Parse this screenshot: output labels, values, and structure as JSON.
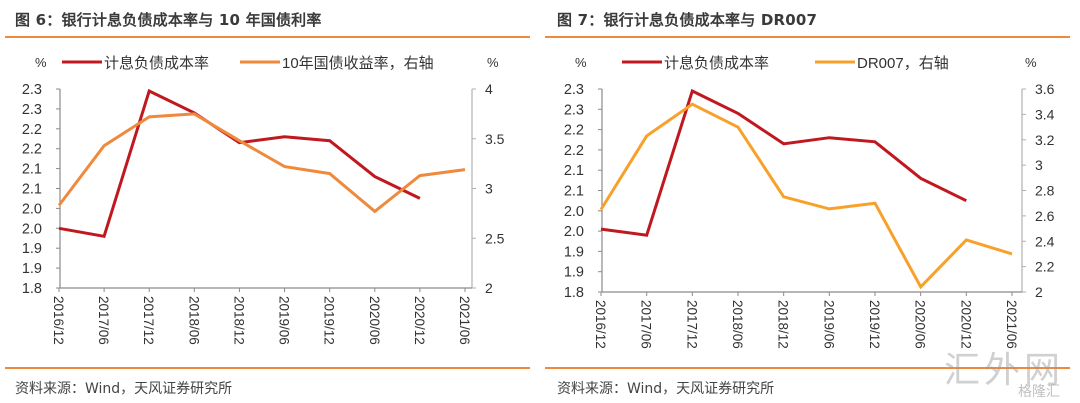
{
  "watermark": {
    "main": "汇外网",
    "sub": "格隆汇"
  },
  "colors": {
    "accent_rule": "#ef8a3d",
    "series_red": "#c0181f",
    "series_orange_1": "#ef8a3d",
    "series_orange_2": "#f7a12a",
    "axis": "#8a8a8a",
    "text": "#333333"
  },
  "chart_data": [
    {
      "type": "line",
      "title": "图 6：银行计息负债成本率与 10 年国债利率",
      "source": "资料来源：Wind，天风证券研究所",
      "left_unit": "%",
      "right_unit": "%",
      "legend_position": "top",
      "x": [
        "2016/12",
        "2017/06",
        "2017/12",
        "2018/06",
        "2018/12",
        "2019/06",
        "2019/12",
        "2020/06",
        "2020/12",
        "2021/06"
      ],
      "ylim_left": [
        1.8,
        2.3
      ],
      "yticks_left": [
        1.8,
        1.85,
        1.9,
        1.95,
        2.0,
        2.05,
        2.1,
        2.15,
        2.2,
        2.25,
        2.3
      ],
      "ytick_labels_left": [
        "1.8",
        "1.9",
        "1.9",
        "2.0",
        "2.0",
        "2.1",
        "2.1",
        "2.2",
        "2.2",
        "2.3",
        "2.3"
      ],
      "ylim_right": [
        2,
        4
      ],
      "yticks_right": [
        2,
        2.5,
        3,
        3.5,
        4
      ],
      "ytick_labels_right": [
        "2",
        "2.5",
        "3",
        "3.5",
        "4"
      ],
      "series": [
        {
          "name": "计息负债成本率",
          "axis": "left",
          "color": "#c0181f",
          "values": [
            1.95,
            1.93,
            2.295,
            2.24,
            2.165,
            2.18,
            2.17,
            2.08,
            2.025,
            null
          ]
        },
        {
          "name": "10年国债收益率，右轴",
          "axis": "right",
          "color": "#ef8a3d",
          "values": [
            2.83,
            3.43,
            3.72,
            3.75,
            3.48,
            3.22,
            3.15,
            2.77,
            3.13,
            3.19
          ]
        }
      ]
    },
    {
      "type": "line",
      "title": "图 7：银行计息负债成本率与 DR007",
      "source": "资料来源：Wind，天风证券研究所",
      "left_unit": "%",
      "right_unit": "%",
      "legend_position": "top",
      "x": [
        "2016/12",
        "2017/06",
        "2017/12",
        "2018/06",
        "2018/12",
        "2019/06",
        "2019/12",
        "2020/06",
        "2020/12",
        "2021/06"
      ],
      "ylim_left": [
        1.8,
        2.3
      ],
      "yticks_left": [
        1.8,
        1.85,
        1.9,
        1.95,
        2.0,
        2.05,
        2.1,
        2.15,
        2.2,
        2.25,
        2.3
      ],
      "ytick_labels_left": [
        "1.8",
        "1.9",
        "1.9",
        "2.0",
        "2.0",
        "2.1",
        "2.1",
        "2.2",
        "2.2",
        "2.3",
        "2.3"
      ],
      "ylim_right": [
        2,
        3.6
      ],
      "yticks_right": [
        2,
        2.2,
        2.4,
        2.6,
        2.8,
        3,
        3.2,
        3.4,
        3.6
      ],
      "ytick_labels_right": [
        "2",
        "2.2",
        "2.4",
        "2.6",
        "2.8",
        "3",
        "3.2",
        "3.4",
        "3.6"
      ],
      "series": [
        {
          "name": "计息负债成本率",
          "axis": "left",
          "color": "#c0181f",
          "values": [
            1.955,
            1.94,
            2.295,
            2.24,
            2.165,
            2.18,
            2.17,
            2.08,
            2.025,
            null
          ]
        },
        {
          "name": "DR007，右轴",
          "axis": "right",
          "color": "#f7a12a",
          "values": [
            2.65,
            3.23,
            3.48,
            3.3,
            2.75,
            2.655,
            2.7,
            2.04,
            2.41,
            2.3
          ]
        }
      ]
    }
  ]
}
